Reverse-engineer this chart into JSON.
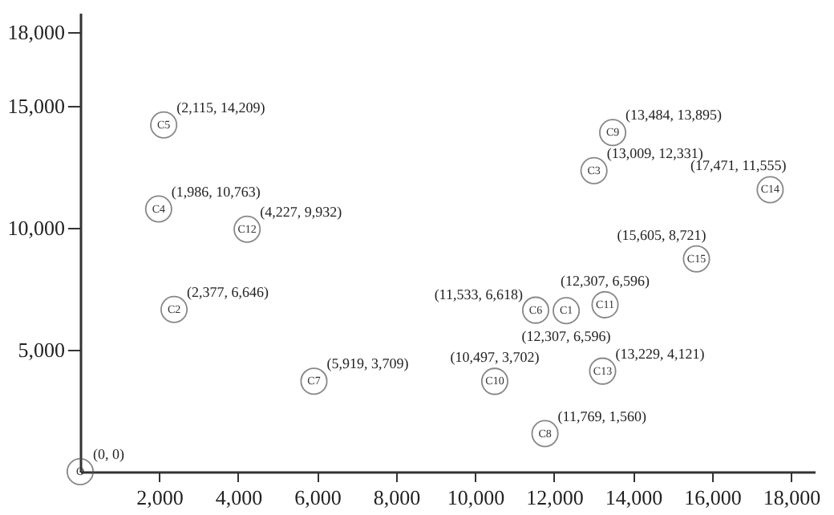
{
  "chart_data": {
    "type": "scatter",
    "x": [
      0,
      12307,
      2377,
      13009,
      1986,
      2115,
      11533,
      5919,
      11769,
      13484,
      10497,
      13290,
      4227,
      13229,
      17471,
      15605
    ],
    "values": [
      0,
      6596,
      6646,
      12331,
      10763,
      14209,
      6618,
      3709,
      1560,
      13895,
      3702,
      6840,
      9932,
      4121,
      11555,
      8721
    ],
    "value_labels": [
      "(0, 0)",
      "(12,307, 6,596)",
      "(2,377, 6,646)",
      "(13,009, 12,331)",
      "(1,986, 10,763)",
      "(2,115, 14,209)",
      "(11,533, 6,618)",
      "(5,919, 3,709)",
      "(11,769, 1,560)",
      "(13,484, 13,895)",
      "(10,497, 3,702)",
      "(12,307, 6,596)",
      "(4,227, 9,932)",
      "(13,229, 4,121)",
      "(17,471, 11,555)",
      "(15,605, 8,721)"
    ],
    "annotations": [
      {
        "text": "O",
        "x": 0,
        "y": 0
      },
      {
        "text": "C1",
        "x": 12307,
        "y": 6596
      },
      {
        "text": "C2",
        "x": 2377,
        "y": 6646
      },
      {
        "text": "C3",
        "x": 13009,
        "y": 12331
      },
      {
        "text": "C4",
        "x": 1986,
        "y": 10763
      },
      {
        "text": "C5",
        "x": 2115,
        "y": 14209
      },
      {
        "text": "C6",
        "x": 11533,
        "y": 6618
      },
      {
        "text": "C7",
        "x": 5919,
        "y": 3709
      },
      {
        "text": "C8",
        "x": 11769,
        "y": 1560
      },
      {
        "text": "C9",
        "x": 13484,
        "y": 13895
      },
      {
        "text": "C10",
        "x": 10497,
        "y": 3702
      },
      {
        "text": "C11",
        "x": 13290,
        "y": 6840
      },
      {
        "text": "C12",
        "x": 4227,
        "y": 9932
      },
      {
        "text": "C13",
        "x": 13229,
        "y": 4121
      },
      {
        "text": "C14",
        "x": 17471,
        "y": 11555
      },
      {
        "text": "C15",
        "x": 15605,
        "y": 8721
      }
    ],
    "color": "#555555",
    "marker": "circle",
    "grid": false,
    "xlim": [
      0,
      18600
    ],
    "ylim": [
      0,
      18800
    ],
    "xticks": [
      {
        "value": 2000,
        "label": "2,000"
      },
      {
        "value": 4000,
        "label": "4,000"
      },
      {
        "value": 6000,
        "label": "6,000"
      },
      {
        "value": 8000,
        "label": "8,000"
      },
      {
        "value": 10000,
        "label": "10,000"
      },
      {
        "value": 12000,
        "label": "12,000"
      },
      {
        "value": 14000,
        "label": "14,000"
      },
      {
        "value": 16000,
        "label": "16,000"
      },
      {
        "value": 18000,
        "label": "18,000"
      }
    ],
    "yticks": [
      {
        "value": 5000,
        "label": "5,000"
      },
      {
        "value": 10000,
        "label": "10,000"
      },
      {
        "value": 15000,
        "label": "15,000"
      },
      {
        "value": 18000,
        "label": "18,000"
      }
    ]
  }
}
